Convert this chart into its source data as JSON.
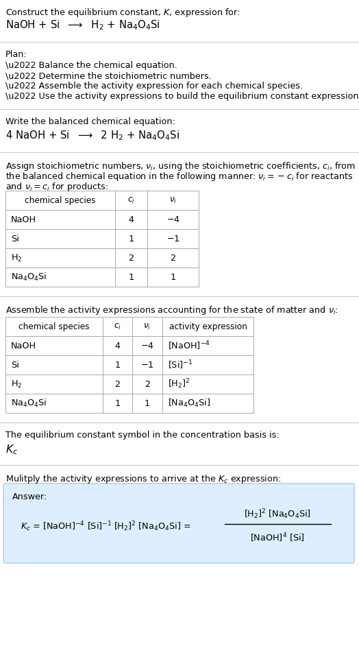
{
  "bg_color": "#ffffff",
  "text_color": "#000000",
  "table_border_color": "#aaaaaa",
  "answer_box_color": "#ddeeff",
  "answer_box_edge": "#aaccee",
  "separator_color": "#cccccc",
  "font_size": 9.2,
  "sections": {
    "title1": "Construct the equilibrium constant, $K$, expression for:",
    "title2": "NaOH + Si  $\\longrightarrow$  H$_2$ + Na$_4$O$_4$Si",
    "plan_header": "Plan:",
    "bullets": [
      "\\u2022 Balance the chemical equation.",
      "\\u2022 Determine the stoichiometric numbers.",
      "\\u2022 Assemble the activity expression for each chemical species.",
      "\\u2022 Use the activity expressions to build the equilibrium constant expression."
    ],
    "balanced_header": "Write the balanced chemical equation:",
    "balanced_eq": "4 NaOH + Si  $\\longrightarrow$  2 H$_2$ + Na$_4$O$_4$Si",
    "stoich_line1": "Assign stoichiometric numbers, $\\nu_i$, using the stoichiometric coefficients, $c_i$, from",
    "stoich_line2": "the balanced chemical equation in the following manner: $\\nu_i = -c_i$ for reactants",
    "stoich_line3": "and $\\nu_i = c_i$ for products:",
    "table1_headers": [
      "chemical species",
      "$c_i$",
      "$\\nu_i$"
    ],
    "table1_rows": [
      [
        "NaOH",
        "4",
        "$-4$"
      ],
      [
        "Si",
        "1",
        "$-1$"
      ],
      [
        "H$_2$",
        "2",
        "2"
      ],
      [
        "Na$_4$O$_4$Si",
        "1",
        "1"
      ]
    ],
    "assemble_header": "Assemble the activity expressions accounting for the state of matter and $\\nu_i$:",
    "table2_headers": [
      "chemical species",
      "$c_i$",
      "$\\nu_i$",
      "activity expression"
    ],
    "table2_rows": [
      [
        "NaOH",
        "4",
        "$-4$",
        "[NaOH]$^{-4}$"
      ],
      [
        "Si",
        "1",
        "$-1$",
        "[Si]$^{-1}$"
      ],
      [
        "H$_2$",
        "2",
        "2",
        "[H$_2$]$^2$"
      ],
      [
        "Na$_4$O$_4$Si",
        "1",
        "1",
        "[Na$_4$O$_4$Si]"
      ]
    ],
    "kc_header": "The equilibrium constant symbol in the concentration basis is:",
    "kc_symbol": "$K_c$",
    "multiply_header": "Mulitply the activity expressions to arrive at the $K_c$ expression:",
    "answer_label": "Answer:"
  }
}
